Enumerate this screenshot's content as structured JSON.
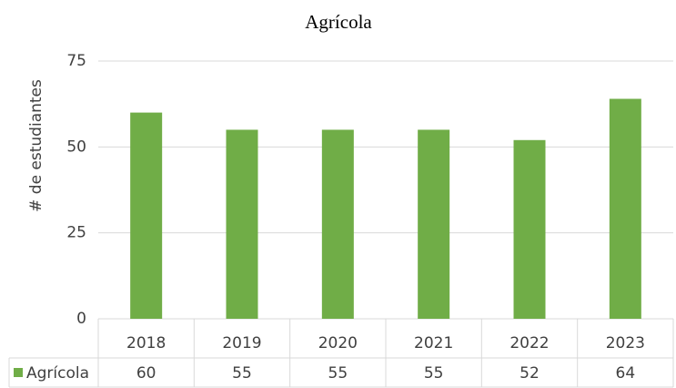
{
  "chart_data": {
    "type": "bar",
    "title": "Agrícola",
    "y_label": "# de estudiantes",
    "categories": [
      "2018",
      "2019",
      "2020",
      "2021",
      "2022",
      "2023"
    ],
    "series": [
      {
        "name": "Agrícola",
        "color": "#70ad47",
        "values": [
          60,
          55,
          55,
          55,
          52,
          64
        ]
      }
    ],
    "ylim": [
      0,
      75
    ],
    "yticks": [
      0,
      25,
      50,
      75
    ],
    "grid": true,
    "data_table": true
  }
}
